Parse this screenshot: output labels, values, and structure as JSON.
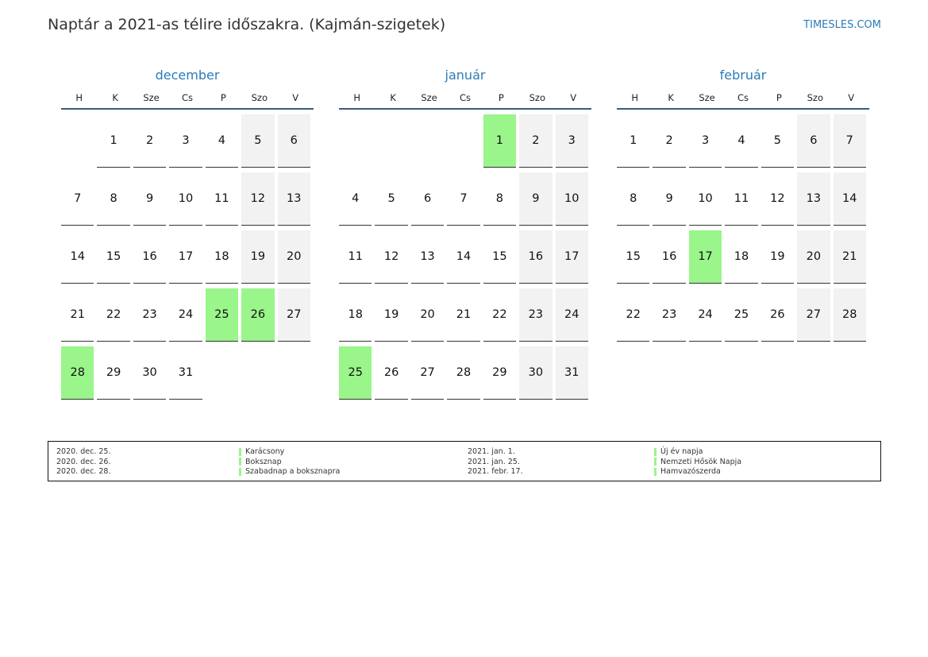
{
  "header": {
    "title": "Naptár a 2021-as télire időszakra. (Kajmán-szigetek)",
    "site": "TIMESLES.COM"
  },
  "weekdays": [
    "H",
    "K",
    "Sze",
    "Cs",
    "P",
    "Szo",
    "V"
  ],
  "months": [
    {
      "name": "december",
      "rows": [
        [
          "",
          "1",
          "2",
          "3",
          "4",
          "5",
          "6"
        ],
        [
          "7",
          "8",
          "9",
          "10",
          "11",
          "12",
          "13"
        ],
        [
          "14",
          "15",
          "16",
          "17",
          "18",
          "19",
          "20"
        ],
        [
          "21",
          "22",
          "23",
          "24",
          "25",
          "26",
          "27"
        ],
        [
          "28",
          "29",
          "30",
          "31",
          "",
          "",
          ""
        ]
      ],
      "holidays": [
        "25",
        "26",
        "28"
      ]
    },
    {
      "name": "január",
      "rows": [
        [
          "",
          "",
          "",
          "",
          "1",
          "2",
          "3"
        ],
        [
          "4",
          "5",
          "6",
          "7",
          "8",
          "9",
          "10"
        ],
        [
          "11",
          "12",
          "13",
          "14",
          "15",
          "16",
          "17"
        ],
        [
          "18",
          "19",
          "20",
          "21",
          "22",
          "23",
          "24"
        ],
        [
          "25",
          "26",
          "27",
          "28",
          "29",
          "30",
          "31"
        ]
      ],
      "holidays": [
        "1",
        "25"
      ]
    },
    {
      "name": "február",
      "rows": [
        [
          "1",
          "2",
          "3",
          "4",
          "5",
          "6",
          "7"
        ],
        [
          "8",
          "9",
          "10",
          "11",
          "12",
          "13",
          "14"
        ],
        [
          "15",
          "16",
          "17",
          "18",
          "19",
          "20",
          "21"
        ],
        [
          "22",
          "23",
          "24",
          "25",
          "26",
          "27",
          "28"
        ]
      ],
      "holidays": [
        "17"
      ]
    }
  ],
  "legend": {
    "left": [
      {
        "date": "2020. dec. 25.",
        "name": "Karácsony"
      },
      {
        "date": "2020. dec. 26.",
        "name": "Boksznap"
      },
      {
        "date": "2020. dec. 28.",
        "name": "Szabadnap a boksznapra"
      }
    ],
    "right": [
      {
        "date": "2021. jan. 1.",
        "name": "Új év napja"
      },
      {
        "date": "2021. jan. 25.",
        "name": "Nemzeti Hősök Napja"
      },
      {
        "date": "2021. febr. 17.",
        "name": "Hamvazószerda"
      }
    ]
  },
  "colors": {
    "holiday": "#9af58a",
    "weekend": "#f2f2f2",
    "accent": "#2b7bb9"
  }
}
